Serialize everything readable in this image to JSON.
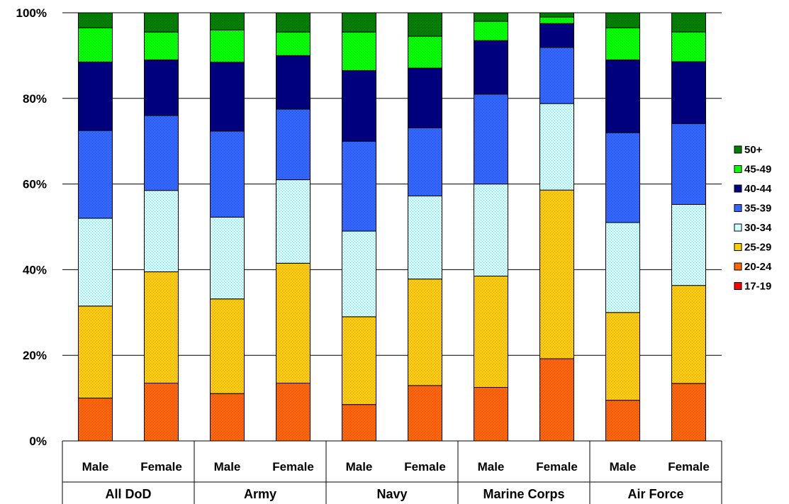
{
  "chart_data": {
    "type": "bar",
    "stacked": true,
    "percent": true,
    "title": "",
    "xlabel": "",
    "ylabel": "",
    "ylim": [
      0,
      100
    ],
    "y_ticks": [
      "0%",
      "20%",
      "40%",
      "60%",
      "80%",
      "100%"
    ],
    "grid": true,
    "legend_position": "right",
    "groups": [
      "All DoD",
      "Army",
      "Navy",
      "Marine Corps",
      "Air Force"
    ],
    "categories": [
      "Male",
      "Female",
      "Male",
      "Female",
      "Male",
      "Female",
      "Male",
      "Female",
      "Male",
      "Female"
    ],
    "series": [
      {
        "name": "17-19",
        "color": "#ff0000",
        "values": [
          0,
          0,
          0,
          0,
          0,
          0,
          0,
          0,
          0,
          0
        ]
      },
      {
        "name": "20-24",
        "color": "#ff6600",
        "values": [
          10,
          13.5,
          11,
          13.5,
          8.5,
          13,
          12.5,
          19,
          9.5,
          13.5
        ]
      },
      {
        "name": "25-29",
        "color": "#ffcc00",
        "values": [
          21.5,
          26,
          22,
          28,
          20.5,
          25,
          26,
          39,
          20.5,
          23
        ]
      },
      {
        "name": "30-34",
        "color": "#ccffff",
        "values": [
          20.5,
          19,
          19,
          19.5,
          20,
          19.5,
          21.5,
          20,
          21,
          19
        ]
      },
      {
        "name": "35-39",
        "color": "#3366ff",
        "values": [
          20.5,
          17.5,
          20,
          16.5,
          21,
          16,
          21,
          13,
          21,
          19
        ]
      },
      {
        "name": "40-44",
        "color": "#000080",
        "values": [
          16,
          13,
          16,
          12.5,
          16.5,
          14,
          12.5,
          5.5,
          17,
          14.5
        ]
      },
      {
        "name": "45-49",
        "color": "#00ff00",
        "values": [
          8,
          6.5,
          7.5,
          5.5,
          9,
          7.5,
          4.5,
          1.5,
          7.5,
          7
        ]
      },
      {
        "name": "50+",
        "color": "#008000",
        "values": [
          3.5,
          4.5,
          4,
          4.5,
          4.5,
          5.5,
          2,
          1,
          3.5,
          4.5
        ]
      }
    ]
  }
}
